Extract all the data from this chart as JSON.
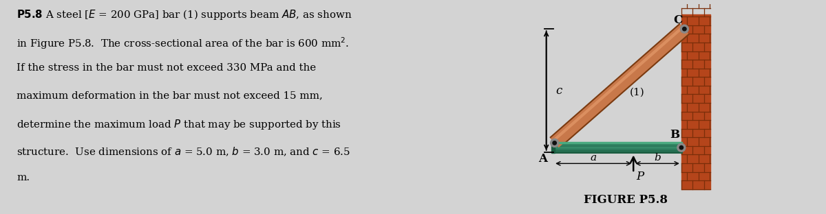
{
  "bg_color": "#d3d3d3",
  "text_color": "#000000",
  "figure_label": "FIGURE P5.8",
  "wall_color": "#b5451b",
  "wall_brick_dark": "#7a2e0a",
  "beam_color": "#2e7d5e",
  "beam_dark": "#1a5c40",
  "beam_shine": "#4aaa80",
  "bar_color": "#c8784a",
  "bar_dark": "#7a3a10",
  "pin_outer": "#777777",
  "pin_inner": "#222222",
  "label_C": "C",
  "label_c": "c",
  "label_1": "(1)",
  "label_A": "A",
  "label_B": "B",
  "label_a": "a",
  "label_b": "b",
  "label_P": "P",
  "text_lines": [
    "\\textbf{P5.8} A steel [$E$ = 200 GPa] bar (1) supports beam $AB$, as shown",
    "in Figure P5.8.  The cross-sectional area of the bar is 600 mm$^2$.",
    "If the stress in the bar must not exceed 330 MPa and the",
    "maximum deformation in the bar must not exceed 15 mm,",
    "determine the maximum load $P$ that may be supported by this",
    "structure.  Use dimensions of $a$ = 5.0 m, $b$ = 3.0 m, and $c$ = 6.5",
    "m."
  ]
}
